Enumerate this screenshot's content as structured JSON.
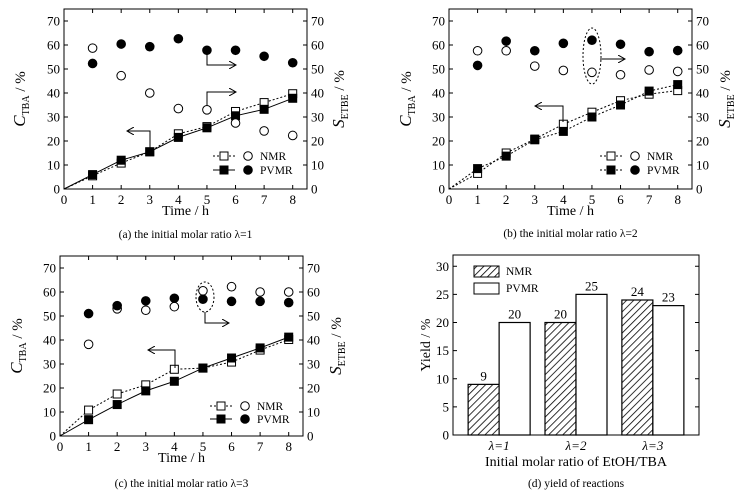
{
  "chart_data": [
    {
      "type": "line",
      "panel": "a",
      "caption": "(a) the initial molar ratio λ=1",
      "xlabel": "Time / h",
      "ylabel": {
        "symbol": "C",
        "sub": "TBA",
        "unit": " / %"
      },
      "ylabel_right": {
        "symbol": "S",
        "sub": "ETBE",
        "unit": " / %"
      },
      "xlim": [
        0,
        8.5
      ],
      "ylim": [
        0,
        75
      ],
      "ylim_right": [
        0,
        75
      ],
      "xticks": [
        0,
        1,
        2,
        3,
        4,
        5,
        6,
        7,
        8
      ],
      "yticks": [
        0,
        10,
        20,
        30,
        40,
        50,
        60,
        70
      ],
      "legend": {
        "placement": "lower-right",
        "entries": [
          "NMR",
          "PVMR"
        ]
      },
      "x": [
        0,
        1,
        2,
        3,
        4,
        5,
        6,
        7,
        8
      ],
      "series": [
        {
          "name": "NMR C_TBA",
          "axis": "left",
          "marker": "open-square",
          "line": "dotted",
          "values": [
            0,
            5.5,
            10.8,
            15.5,
            23,
            26,
            32.3,
            36,
            39.7
          ]
        },
        {
          "name": "PVMR C_TBA",
          "axis": "left",
          "marker": "filled-square",
          "line": "solid",
          "values": [
            0,
            6,
            12,
            15.5,
            21.5,
            25.5,
            30.5,
            33.2,
            37.8
          ]
        },
        {
          "name": "NMR S_ETBE",
          "axis": "right",
          "marker": "open-circle",
          "line": "none",
          "x": [
            1,
            2,
            3,
            4,
            5,
            6,
            7,
            8
          ],
          "values": [
            58.7,
            47.2,
            40,
            33.5,
            33,
            27.5,
            24.2,
            22.3
          ]
        },
        {
          "name": "PVMR S_ETBE",
          "axis": "right",
          "marker": "filled-circle",
          "line": "none",
          "x": [
            1,
            2,
            3,
            4,
            5,
            6,
            7,
            8
          ],
          "values": [
            52.3,
            60.4,
            59.3,
            62.6,
            57.8,
            57.8,
            55.3,
            52.6
          ]
        }
      ]
    },
    {
      "type": "line",
      "panel": "b",
      "caption": "(b) the initial molar ratio λ=2",
      "xlabel": "Time / h",
      "ylabel": {
        "symbol": "C",
        "sub": "TBA",
        "unit": " / %"
      },
      "ylabel_right": {
        "symbol": "S",
        "sub": "ETBE",
        "unit": " / %"
      },
      "xlim": [
        0,
        8.5
      ],
      "ylim": [
        0,
        75
      ],
      "ylim_right": [
        0,
        75
      ],
      "xticks": [
        0,
        1,
        2,
        3,
        4,
        5,
        6,
        7,
        8
      ],
      "yticks": [
        0,
        10,
        20,
        30,
        40,
        50,
        60,
        70
      ],
      "legend": {
        "placement": "lower-right",
        "entries": [
          "NMR",
          "PVMR"
        ]
      },
      "x": [
        0,
        1,
        2,
        3,
        4,
        5,
        6,
        7,
        8
      ],
      "series": [
        {
          "name": "NMR C_TBA",
          "axis": "left",
          "marker": "open-square",
          "line": "dotted",
          "values": [
            0,
            6.5,
            15,
            20.8,
            27,
            32,
            36.8,
            39.5,
            41
          ]
        },
        {
          "name": "PVMR C_TBA",
          "axis": "left",
          "marker": "filled-square",
          "line": "dotted",
          "values": [
            0,
            8.5,
            13.7,
            20.5,
            24,
            30,
            35,
            40.8,
            43.5
          ]
        },
        {
          "name": "NMR S_ETBE",
          "axis": "right",
          "marker": "open-circle",
          "line": "none",
          "x": [
            1,
            2,
            3,
            4,
            5,
            6,
            7,
            8
          ],
          "values": [
            57.6,
            57.6,
            51.2,
            49.4,
            48.6,
            47.6,
            49.6,
            49
          ]
        },
        {
          "name": "PVMR S_ETBE",
          "axis": "right",
          "marker": "filled-circle",
          "line": "none",
          "x": [
            1,
            2,
            3,
            4,
            5,
            6,
            7,
            8
          ],
          "values": [
            51.5,
            61.6,
            57.6,
            60.7,
            62,
            60.3,
            57.2,
            57.7
          ]
        }
      ]
    },
    {
      "type": "line",
      "panel": "c",
      "caption": "(c) the initial molar ratio λ=3",
      "xlabel": "Time / h",
      "ylabel": {
        "symbol": "C",
        "sub": "TBA",
        "unit": " / %"
      },
      "ylabel_right": {
        "symbol": "S",
        "sub": "ETBE",
        "unit": " / %"
      },
      "xlim": [
        0,
        8.5
      ],
      "ylim": [
        0,
        75
      ],
      "ylim_right": [
        0,
        75
      ],
      "xticks": [
        0,
        1,
        2,
        3,
        4,
        5,
        6,
        7,
        8
      ],
      "yticks": [
        0,
        10,
        20,
        30,
        40,
        50,
        60,
        70
      ],
      "legend": {
        "placement": "lower-right",
        "entries": [
          "NMR",
          "PVMR"
        ]
      },
      "x": [
        0,
        1,
        2,
        3,
        4,
        5,
        6,
        7,
        8
      ],
      "series": [
        {
          "name": "NMR C_TBA",
          "axis": "left",
          "marker": "open-square",
          "line": "dotted",
          "values": [
            0,
            10.8,
            17.5,
            21.3,
            27.8,
            28.3,
            30.8,
            35.8,
            40.2
          ]
        },
        {
          "name": "PVMR C_TBA",
          "axis": "left",
          "marker": "filled-square",
          "line": "solid",
          "values": [
            0,
            6.8,
            13.1,
            18.8,
            22.8,
            28.3,
            32.5,
            36.7,
            41.2
          ]
        },
        {
          "name": "NMR S_ETBE",
          "axis": "right",
          "marker": "open-circle",
          "line": "none",
          "x": [
            1,
            2,
            3,
            4,
            5,
            6,
            7,
            8
          ],
          "values": [
            38.2,
            53,
            52.4,
            53.9,
            60.5,
            62.2,
            60,
            60
          ]
        },
        {
          "name": "PVMR S_ETBE",
          "axis": "right",
          "marker": "filled-circle",
          "line": "none",
          "x": [
            1,
            2,
            3,
            4,
            5,
            6,
            7,
            8
          ],
          "values": [
            51,
            54.3,
            56.3,
            57.4,
            57,
            56.1,
            56.1,
            55.6
          ]
        }
      ]
    },
    {
      "type": "bar",
      "panel": "d",
      "caption": "(d) yield of reactions",
      "xlabel": "Initial molar ratio of EtOH/TBA",
      "ylabel": "Yield / %",
      "categories": [
        "λ=1",
        "λ=2",
        "λ=3"
      ],
      "ylim": [
        0,
        32
      ],
      "yticks": [
        0,
        5,
        10,
        15,
        20,
        25,
        30
      ],
      "legend": {
        "placement": "top-left",
        "entries": [
          "NMR",
          "PVMR"
        ]
      },
      "series": [
        {
          "name": "NMR",
          "fill": "hatched",
          "values": [
            9,
            20,
            24
          ]
        },
        {
          "name": "PVMR",
          "fill": "white",
          "values": [
            20,
            25,
            23
          ]
        }
      ]
    }
  ]
}
